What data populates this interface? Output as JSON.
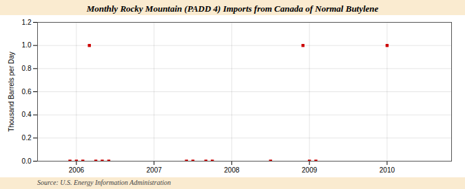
{
  "chart_data": {
    "type": "scatter",
    "title": "Monthly Rocky Mountain (PADD 4) Imports from Canada of Normal Butylene",
    "ylabel": "Thousand Barrels per Day",
    "source": "Source: U.S. Energy Information Administration",
    "x": [
      2005.917,
      2006.0,
      2006.083,
      2006.167,
      2006.25,
      2006.333,
      2006.417,
      2007.417,
      2007.5,
      2007.667,
      2007.75,
      2008.5,
      2008.917,
      2009.0,
      2009.083,
      2010.0
    ],
    "values": [
      0.0,
      0.0,
      0.0,
      1.0,
      0.0,
      0.0,
      0.0,
      0.0,
      0.0,
      0.0,
      0.0,
      0.0,
      1.0,
      0.0,
      0.0,
      1.0
    ],
    "color": "#cc0000",
    "marker": "square",
    "xlim": [
      2005.5,
      2010.83
    ],
    "xticks": [
      2006,
      2007,
      2008,
      2009,
      2010
    ],
    "ylim": [
      0.0,
      1.2
    ],
    "yticks": [
      {
        "value": 0.0,
        "label": "0.0"
      },
      0.2,
      0.4,
      0.6,
      0.8,
      {
        "value": 1.0,
        "label": "1.0"
      },
      1.2
    ],
    "grid": true
  }
}
